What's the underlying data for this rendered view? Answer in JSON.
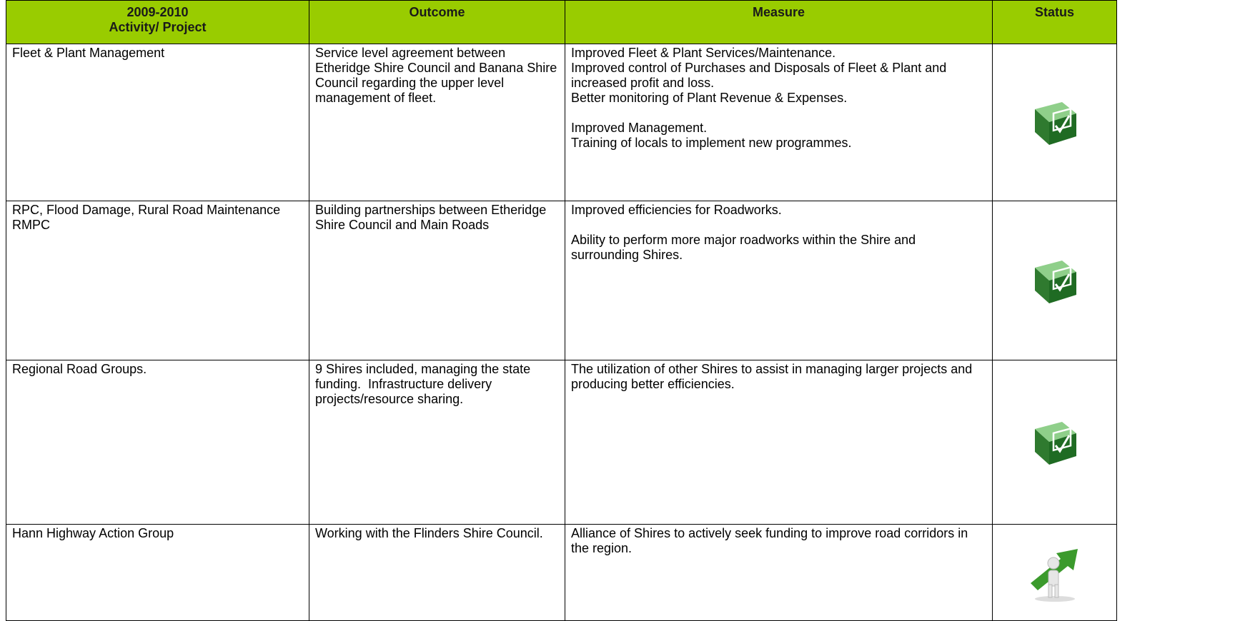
{
  "table": {
    "header": [
      "2009-2010",
      "Activity/ Project",
      "Outcome",
      "Measure",
      "Status"
    ],
    "rows": [
      {
        "activity": [
          "Fleet & Plant Management"
        ],
        "outcome": "Service level agreement between Etheridge Shire Council and Banana Shire Council regarding the upper level management of fleet.",
        "measure": [
          [
            "Improved Fleet & Plant Services/Maintenance.",
            "Improved control of Purchases and Disposals of Fleet & Plant and increased profit and loss.",
            "Better monitoring of Plant Revenue & Expenses."
          ],
          [
            "Improved Management.",
            "Training of locals to implement new programmes."
          ]
        ]
      },
      {
        "activity": [
          "RPC, Flood Damage, Rural Road Maintenance",
          "RMPC"
        ],
        "outcome": "Building partnerships between Etheridge Shire Council and Main Roads",
        "measure": [
          [
            "Improved efficiencies for Roadworks."
          ],
          [
            "Ability to perform more major roadworks within the Shire and surrounding Shires."
          ]
        ]
      },
      {
        "activity": [
          "Regional Road Groups."
        ],
        "outcome": "9 Shires included, managing the state funding.  Infrastructure delivery projects/resource sharing.",
        "measure": [
          [
            "The utilization of other Shires to assist in managing larger projects and producing better efficiencies."
          ]
        ]
      },
      {
        "activity": [
          "Hann Highway Action Group"
        ],
        "outcome": "Working with the Flinders Shire Council.",
        "measure": [
          [
            "Alliance of Shires to actively seek funding to improve road corridors in the region."
          ]
        ]
      }
    ]
  }
}
